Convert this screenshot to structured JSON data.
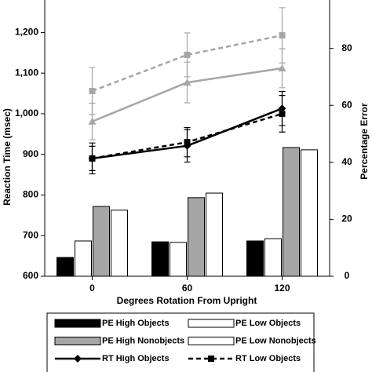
{
  "chart_data": {
    "type": "combo",
    "x_label": "Degrees Rotation From Upright",
    "y_label": "Reaction Time (msec)",
    "y2_label": "Percentage Error",
    "categories": [
      "0",
      "60",
      "120"
    ],
    "ylim": [
      600,
      1280
    ],
    "yticks": [
      600,
      700,
      800,
      900,
      {
        "value": 1000,
        "label": "1,000"
      },
      {
        "value": 1100,
        "label": "1,100"
      },
      {
        "value": 1200,
        "label": "1,200"
      }
    ],
    "y2lim": [
      0,
      97
    ],
    "y2ticks": [
      0,
      20,
      40,
      60,
      80
    ],
    "series": [
      {
        "name": "PE High Objects",
        "kind": "bar",
        "axis": "y2",
        "color": "#000000",
        "values": [
          6.6,
          12.1,
          12.4
        ]
      },
      {
        "name": "PE Low Objects",
        "kind": "bar",
        "axis": "y2",
        "color": "#ffffff",
        "values": [
          12.4,
          11.9,
          13.2
        ]
      },
      {
        "name": "PE High Nonobjects",
        "kind": "bar",
        "axis": "y2",
        "color": "#a6a6a6",
        "values": [
          24.5,
          27.6,
          45.2
        ]
      },
      {
        "name": "PE Low Nonobjects",
        "kind": "bar",
        "axis": "y2",
        "color": "#ffffff",
        "values": [
          23.2,
          29.2,
          44.4
        ]
      },
      {
        "name": "RT High Objects",
        "kind": "line",
        "color": "#000000",
        "marker": "diamond",
        "dashed": false,
        "values": [
          890,
          921,
          1013
        ],
        "errors": [
          38,
          40,
          42
        ]
      },
      {
        "name": "RT Low Objects",
        "kind": "line",
        "color": "#000000",
        "marker": "square",
        "dashed": true,
        "values": [
          890,
          930,
          1000
        ],
        "errors": [
          30,
          36,
          45
        ]
      },
      {
        "name": "RT High Nonobjects",
        "kind": "line",
        "color": "#a6a6a6",
        "marker": "triangle",
        "dashed": false,
        "values": [
          981,
          1077,
          1112
        ],
        "errors": [
          45,
          50,
          48
        ]
      },
      {
        "name": "RT Low Nonobjects",
        "kind": "line",
        "color": "#a6a6a6",
        "marker": "square",
        "dashed": true,
        "values": [
          1056,
          1145,
          1193
        ],
        "errors": [
          58,
          54,
          68
        ]
      }
    ]
  }
}
